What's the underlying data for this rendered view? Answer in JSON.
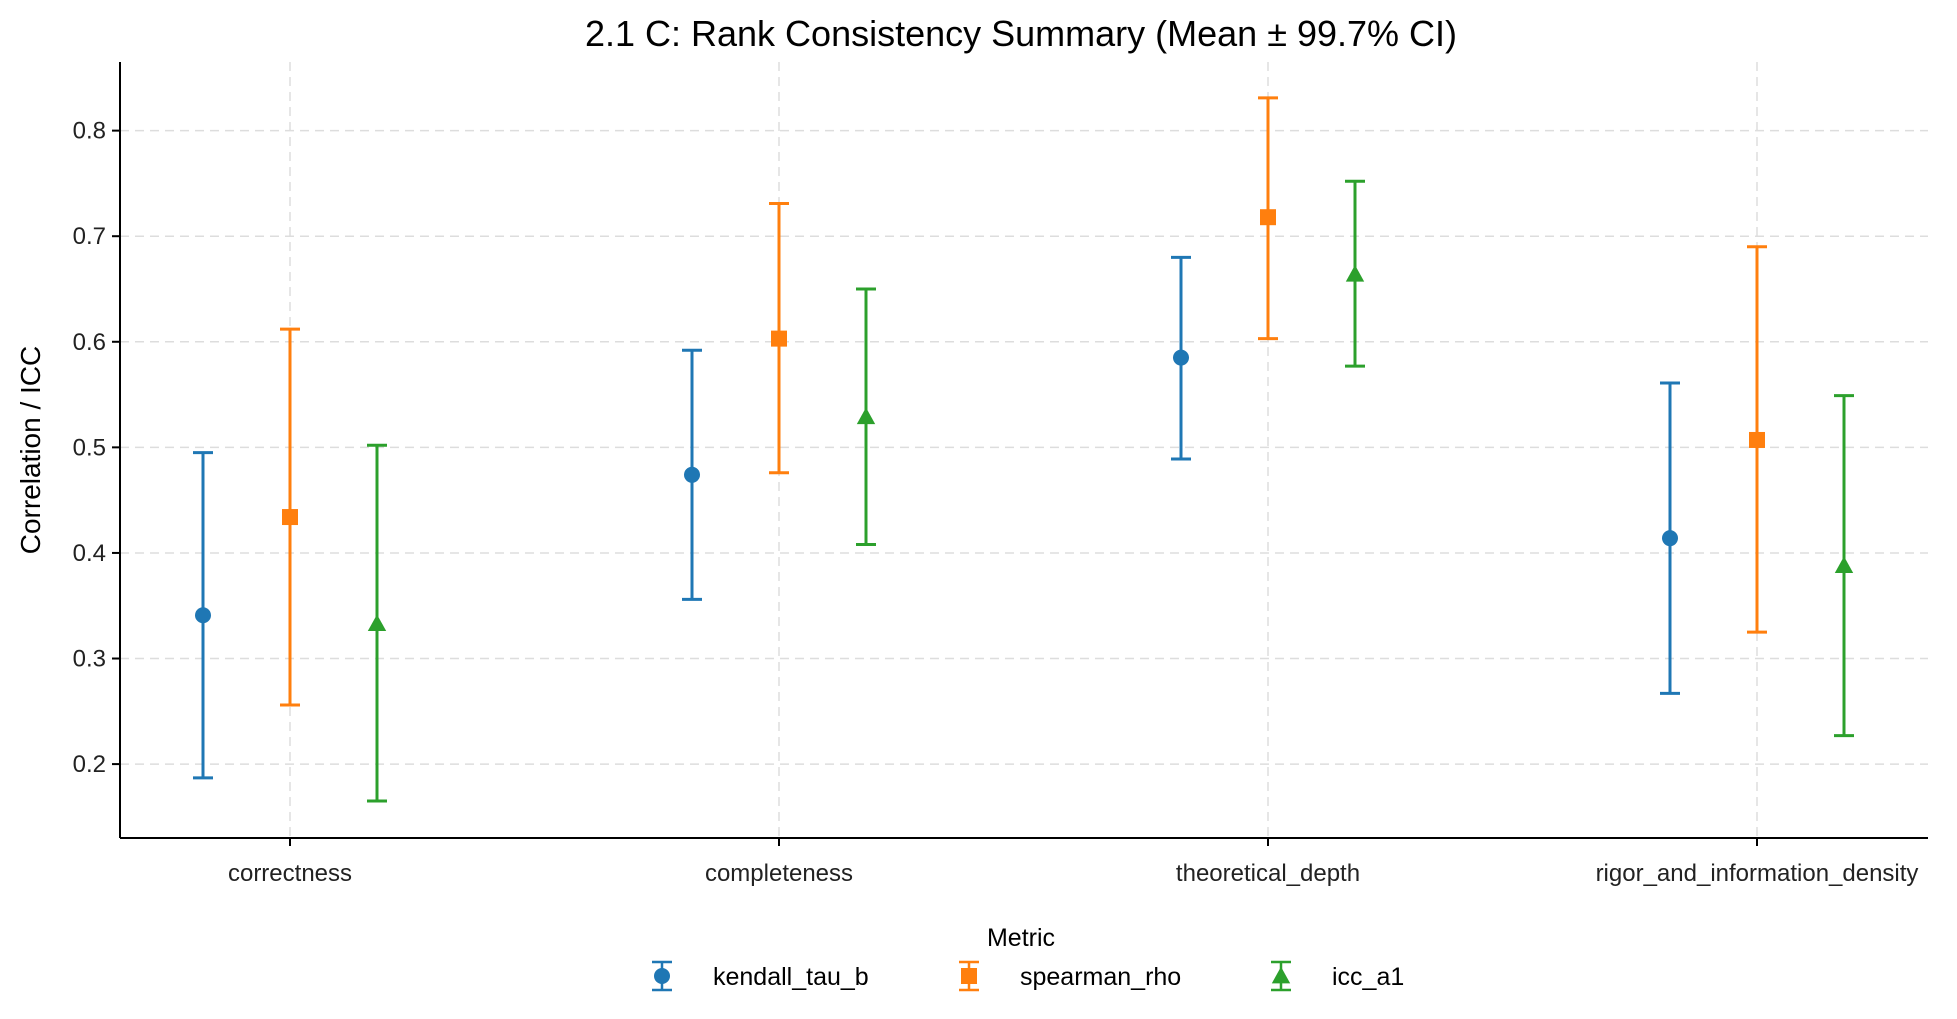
{
  "chart_data": {
    "type": "scatter",
    "title": "2.1 C: Rank Consistency Summary (Mean ± 99.7% CI)",
    "xlabel": "",
    "ylabel": "Correlation / ICC",
    "categories": [
      "correctness",
      "completeness",
      "theoretical_depth",
      "rigor_and_information_density"
    ],
    "ylim": [
      0.13,
      0.865
    ],
    "yticks": [
      0.2,
      0.3,
      0.4,
      0.5,
      0.6,
      0.7,
      0.8
    ],
    "grid": true,
    "legend": {
      "title": "Metric",
      "placement": "bottom-center"
    },
    "series": [
      {
        "name": "kendall_tau_b",
        "color": "#1f77b4",
        "marker": "circle",
        "mean": [
          0.341,
          0.474,
          0.585,
          0.414
        ],
        "lower": [
          0.187,
          0.356,
          0.489,
          0.267
        ],
        "upper": [
          0.495,
          0.592,
          0.68,
          0.561
        ]
      },
      {
        "name": "spearman_rho",
        "color": "#ff7f0e",
        "marker": "square",
        "mean": [
          0.434,
          0.603,
          0.718,
          0.507
        ],
        "lower": [
          0.256,
          0.476,
          0.603,
          0.325
        ],
        "upper": [
          0.612,
          0.731,
          0.831,
          0.69
        ]
      },
      {
        "name": "icc_a1",
        "color": "#2ca02c",
        "marker": "triangle",
        "mean": [
          0.333,
          0.529,
          0.664,
          0.388
        ],
        "lower": [
          0.165,
          0.408,
          0.577,
          0.227
        ],
        "upper": [
          0.502,
          0.65,
          0.752,
          0.549
        ]
      }
    ]
  }
}
